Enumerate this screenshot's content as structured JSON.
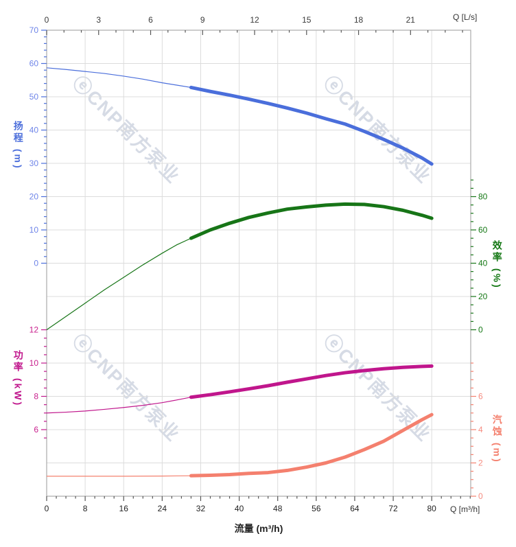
{
  "watermark": {
    "text": "ⓔCNP南方泵业"
  },
  "axis_titles": {
    "head": "扬程 (m)",
    "power": "功率 (kW)",
    "efficiency": "效率 (%)",
    "npsh": "汽蚀 (m)",
    "flow_bottom": "流量 (m³/h)",
    "q_top_unit": "Q [L/s]",
    "q_bottom_unit": "Q [m³/h]"
  },
  "colors": {
    "grid": "#dcdcdc",
    "border": "#ababab",
    "top_bottom_ticks": "#555555",
    "top_labels": "#3a3a3a",
    "bottom_labels": "#222222",
    "watermark": "rgba(158,170,194,0.42)"
  },
  "chart_data": {
    "type": "line",
    "title": "",
    "xlabel": "流量 (m³/h)",
    "x_bottom": {
      "unit": "m³/h",
      "ticks": [
        0,
        8,
        16,
        24,
        32,
        40,
        48,
        56,
        64,
        72,
        80
      ],
      "minor_step": 2,
      "max_value": 88.1
    },
    "x_top": {
      "unit": "L/s",
      "ticks": [
        0,
        3,
        6,
        9,
        12,
        15,
        18,
        21
      ],
      "minor_step": 1,
      "max_value": 24.4
    },
    "y_axes": {
      "head": {
        "label": "扬程",
        "unit": "m",
        "color": "#4a6edb",
        "label_color": "#6e84e8",
        "ticks": [
          70,
          60,
          50,
          40,
          30,
          20,
          10,
          0
        ],
        "zero_row": 7,
        "units_per_row": 10,
        "minor_step": 2,
        "tick_range": [
          0,
          70
        ],
        "side": "left"
      },
      "efficiency": {
        "label": "效率",
        "unit": "%",
        "color": "#177517",
        "label_color": "#157815",
        "ticks": [
          80,
          60,
          40,
          20,
          0
        ],
        "zero_row": 9,
        "units_per_row": 20,
        "minor_step": 5,
        "tick_range": [
          0,
          90
        ],
        "side": "right"
      },
      "power": {
        "label": "功率",
        "unit": "kW",
        "color": "#c0168c",
        "label_color": "#c81e8c",
        "ticks": [
          12,
          10,
          8,
          6
        ],
        "zero_row": 15,
        "units_per_row": 2,
        "minor_step": 0.5,
        "tick_range": [
          5.5,
          12
        ],
        "side": "left"
      },
      "npsh": {
        "label": "汽蚀",
        "unit": "m",
        "color": "#f4806e",
        "label_color": "#f68c80",
        "ticks": [
          6,
          4,
          2,
          0
        ],
        "zero_row": 14,
        "units_per_row": 2,
        "minor_step": 0.5,
        "tick_range": [
          0,
          8
        ],
        "side": "right"
      }
    },
    "series": [
      {
        "name": "head",
        "axis": "head",
        "color": "#4a6edb",
        "thin_until": 30,
        "points": [
          [
            0,
            58.7
          ],
          [
            4,
            58.2
          ],
          [
            8,
            57.6
          ],
          [
            12,
            57.0
          ],
          [
            16,
            56.2
          ],
          [
            20,
            55.3
          ],
          [
            24,
            54.2
          ],
          [
            27,
            53.5
          ],
          [
            30,
            52.8
          ],
          [
            34,
            51.6
          ],
          [
            38,
            50.5
          ],
          [
            42,
            49.3
          ],
          [
            46,
            48.0
          ],
          [
            50,
            46.6
          ],
          [
            54,
            45.1
          ],
          [
            58,
            43.4
          ],
          [
            62,
            41.8
          ],
          [
            66,
            39.6
          ],
          [
            70,
            37.2
          ],
          [
            74,
            34.6
          ],
          [
            78,
            31.6
          ],
          [
            80,
            29.8
          ]
        ]
      },
      {
        "name": "efficiency",
        "axis": "efficiency",
        "color": "#177517",
        "thin_until": 30,
        "points": [
          [
            0,
            0
          ],
          [
            4,
            8
          ],
          [
            8,
            16
          ],
          [
            12,
            24
          ],
          [
            16,
            31.5
          ],
          [
            20,
            39
          ],
          [
            24,
            46
          ],
          [
            27,
            51
          ],
          [
            30,
            55
          ],
          [
            34,
            60
          ],
          [
            38,
            64
          ],
          [
            42,
            67.5
          ],
          [
            46,
            70.2
          ],
          [
            50,
            72.5
          ],
          [
            54,
            73.8
          ],
          [
            58,
            74.9
          ],
          [
            62,
            75.5
          ],
          [
            66,
            75.3
          ],
          [
            70,
            74.0
          ],
          [
            74,
            71.8
          ],
          [
            78,
            68.8
          ],
          [
            80,
            67.0
          ]
        ]
      },
      {
        "name": "power",
        "axis": "power",
        "color": "#c0168c",
        "thin_until": 30,
        "points": [
          [
            0,
            7.0
          ],
          [
            4,
            7.05
          ],
          [
            8,
            7.12
          ],
          [
            12,
            7.22
          ],
          [
            16,
            7.33
          ],
          [
            20,
            7.46
          ],
          [
            24,
            7.62
          ],
          [
            27,
            7.78
          ],
          [
            30,
            7.95
          ],
          [
            34,
            8.1
          ],
          [
            38,
            8.27
          ],
          [
            42,
            8.45
          ],
          [
            46,
            8.64
          ],
          [
            50,
            8.85
          ],
          [
            54,
            9.05
          ],
          [
            58,
            9.25
          ],
          [
            62,
            9.42
          ],
          [
            66,
            9.55
          ],
          [
            70,
            9.66
          ],
          [
            74,
            9.74
          ],
          [
            78,
            9.8
          ],
          [
            80,
            9.82
          ]
        ]
      },
      {
        "name": "npsh",
        "axis": "npsh",
        "color": "#f4806e",
        "thin_until": 30,
        "points": [
          [
            0,
            1.2
          ],
          [
            8,
            1.2
          ],
          [
            16,
            1.2
          ],
          [
            24,
            1.21
          ],
          [
            30,
            1.23
          ],
          [
            34,
            1.26
          ],
          [
            38,
            1.3
          ],
          [
            42,
            1.37
          ],
          [
            46,
            1.42
          ],
          [
            50,
            1.55
          ],
          [
            54,
            1.75
          ],
          [
            58,
            2.0
          ],
          [
            62,
            2.35
          ],
          [
            66,
            2.8
          ],
          [
            70,
            3.3
          ],
          [
            74,
            3.95
          ],
          [
            78,
            4.6
          ],
          [
            80,
            4.9
          ]
        ]
      }
    ]
  }
}
